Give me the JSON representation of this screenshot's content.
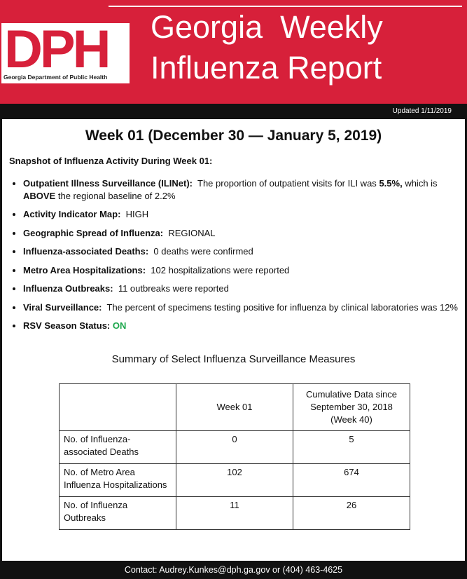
{
  "header": {
    "logo": "DPH",
    "department": "Georgia Department of Public Health",
    "title_line1": "Georgia  Weekly",
    "title_line2": "Influenza Report",
    "updated": "Updated 1/11/2019"
  },
  "week_title": "Week 01 (December 30 — January 5, 2019)",
  "snapshot_heading": "Snapshot of Influenza Activity During Week 01:",
  "bullets": [
    {
      "label": "Outpatient Illness Surveillance (ILINet):",
      "parts": [
        "The proportion of outpatient visits for ILI was",
        "5.5%,",
        "which is",
        "ABOVE",
        "the regional baseline of 2.2%"
      ]
    },
    {
      "label": "Activity Indicator Map:",
      "text": "HIGH"
    },
    {
      "label": "Geographic Spread of Influenza:",
      "text": "REGIONAL"
    },
    {
      "label": "Influenza-associated Deaths:",
      "text": "0 deaths were confirmed"
    },
    {
      "label": "Metro Area Hospitalizations:",
      "text": "102 hospitalizations were reported"
    },
    {
      "label": "Influenza Outbreaks:",
      "text": "11 outbreaks were reported"
    },
    {
      "label": "Viral Surveillance:",
      "text": "The percent of specimens testing positive for influenza by clinical laboratories was  12%"
    },
    {
      "label": "RSV Season Status:",
      "text": "ON"
    }
  ],
  "table": {
    "title": "Summary of Select Influenza Surveillance Measures",
    "header": [
      "Week 01",
      "Cumulative Data since September 30, 2018 (Week 40)"
    ],
    "rows": [
      [
        "No. of Influenza-associated Deaths",
        0,
        5
      ],
      [
        "No. of Metro Area Influenza Hospitalizations",
        102,
        674
      ],
      [
        "No. of Influenza Outbreaks",
        11,
        26
      ]
    ]
  },
  "footer": "Contact:  Audrey.Kunkes@dph.ga.gov or (404) 463-4625"
}
